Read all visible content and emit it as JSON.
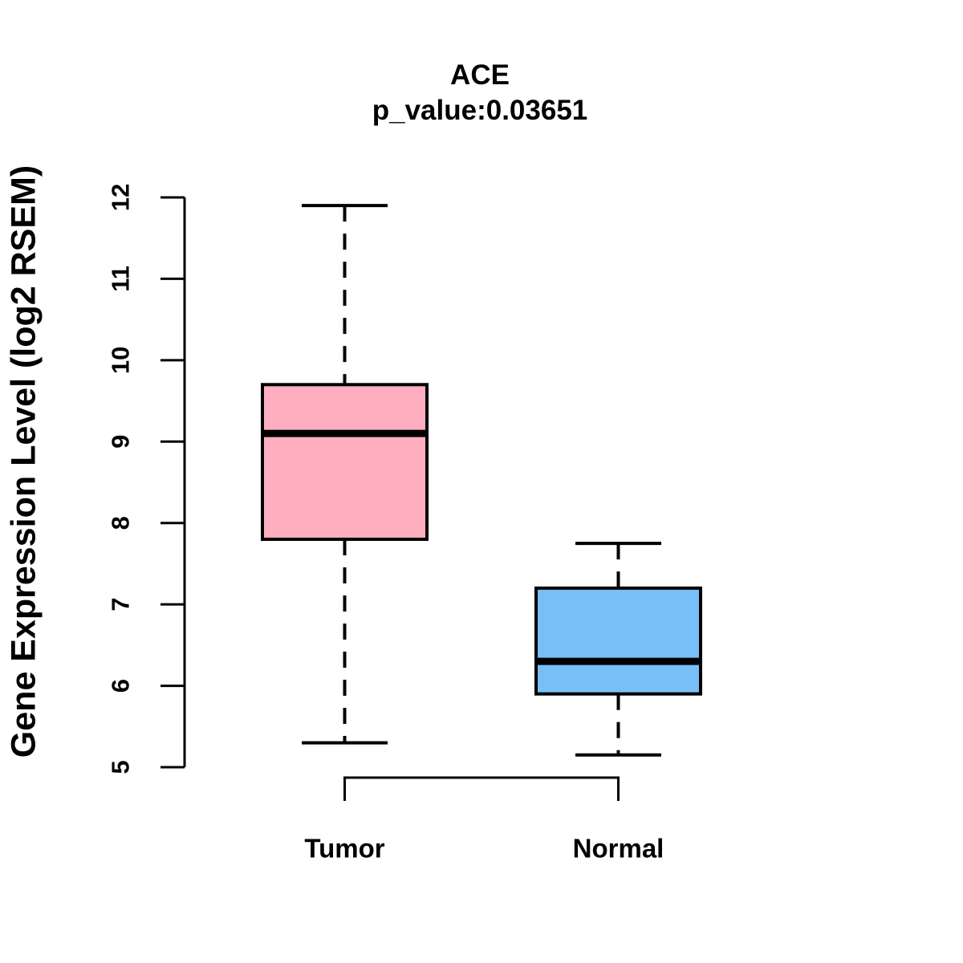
{
  "figure": {
    "title": "ACE",
    "subtitle": "p_value:0.03651",
    "ylabel": "Gene Expression Level (log2 RSEM)"
  },
  "chart_data": {
    "type": "boxplot",
    "title": "ACE",
    "subtitle": "p_value:0.03651",
    "gene": "ACE",
    "p_value": 0.03651,
    "ylabel": "Gene Expression Level (log2 RSEM)",
    "xlabel": "",
    "ylim": [
      5,
      12
    ],
    "yticks": [
      5,
      6,
      7,
      8,
      9,
      10,
      11,
      12
    ],
    "grid": false,
    "legend": "none",
    "line_color": "#000000",
    "background_color": "#ffffff",
    "groups": [
      {
        "label": "Tumor",
        "box_color": "#FFAEC0",
        "whisker_low": 5.3,
        "q1": 7.8,
        "median": 9.1,
        "q3": 9.7,
        "whisker_high": 11.9,
        "whisker_style": "dashed"
      },
      {
        "label": "Normal",
        "box_color": "#77BFF7",
        "whisker_low": 5.15,
        "q1": 5.9,
        "median": 6.3,
        "q3": 7.2,
        "whisker_high": 7.75,
        "whisker_style": "dashed"
      }
    ]
  }
}
